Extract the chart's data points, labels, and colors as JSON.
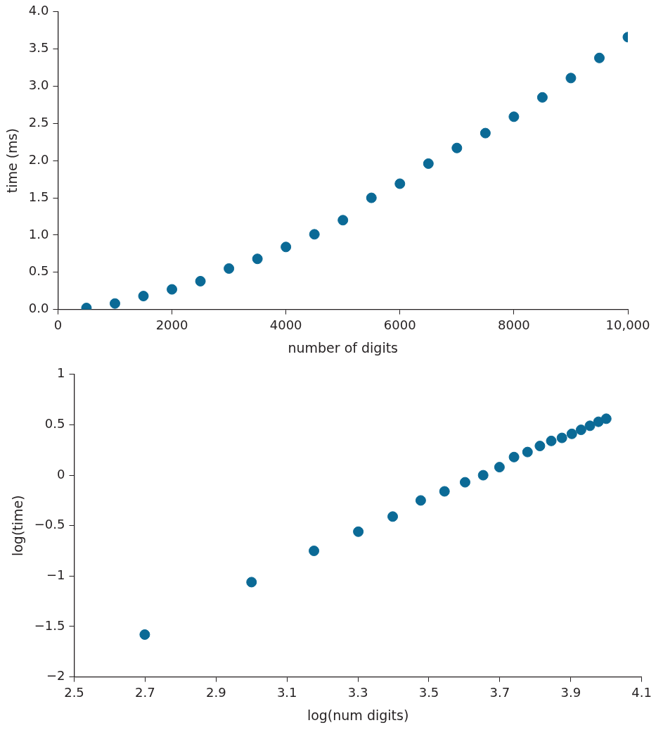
{
  "chart_data": [
    {
      "type": "scatter",
      "xlabel": "number of digits",
      "ylabel": "time (ms)",
      "color": "#0b6a96",
      "marker": "circle",
      "grid": false,
      "x": [
        500,
        1000,
        1500,
        2000,
        2500,
        3000,
        3500,
        4000,
        4500,
        5000,
        5500,
        6000,
        6500,
        7000,
        7500,
        8000,
        8500,
        9000,
        9500,
        10000
      ],
      "values": [
        0.02,
        0.08,
        0.18,
        0.27,
        0.38,
        0.55,
        0.68,
        0.84,
        1.01,
        1.2,
        1.5,
        1.69,
        1.96,
        2.17,
        2.37,
        2.59,
        2.85,
        3.11,
        3.38,
        3.66
      ],
      "xlim": [
        0,
        10000
      ],
      "ylim": [
        0,
        4
      ],
      "xticks": [
        0,
        2000,
        4000,
        6000,
        8000,
        {
          "value": 10000,
          "label": "10,000"
        }
      ],
      "yticks": [
        {
          "value": 0,
          "label": "0.0"
        },
        {
          "value": 0.5,
          "label": "0.5"
        },
        {
          "value": 1,
          "label": "1.0"
        },
        {
          "value": 1.5,
          "label": "1.5"
        },
        {
          "value": 2,
          "label": "2.0"
        },
        {
          "value": 2.5,
          "label": "2.5"
        },
        {
          "value": 3,
          "label": "3.0"
        },
        {
          "value": 3.5,
          "label": "3.5"
        },
        {
          "value": 4,
          "label": "4.0"
        }
      ]
    },
    {
      "type": "scatter",
      "xlabel": "log(num digits)",
      "ylabel": "log(time)",
      "color": "#0b6a96",
      "marker": "circle",
      "grid": false,
      "x": [
        2.699,
        3,
        3.176,
        3.301,
        3.398,
        3.477,
        3.544,
        3.602,
        3.653,
        3.699,
        3.74,
        3.778,
        3.813,
        3.845,
        3.875,
        3.903,
        3.929,
        3.954,
        3.978,
        4
      ],
      "values": [
        -1.58,
        -1.06,
        -0.75,
        -0.56,
        -0.41,
        -0.25,
        -0.16,
        -0.07,
        0,
        0.08,
        0.18,
        0.23,
        0.29,
        0.34,
        0.37,
        0.41,
        0.45,
        0.49,
        0.53,
        0.56
      ],
      "xlim": [
        2.5,
        4.1
      ],
      "ylim": [
        -2,
        1
      ],
      "xticks": [
        2.5,
        2.7,
        2.9,
        3.1,
        3.3,
        3.5,
        3.7,
        3.9,
        4.1
      ],
      "yticks": [
        {
          "value": -2,
          "label": "−2"
        },
        {
          "value": -1.5,
          "label": "−1.5"
        },
        {
          "value": -1,
          "label": "−1"
        },
        {
          "value": -0.5,
          "label": "−0.5"
        },
        0,
        0.5,
        1
      ]
    }
  ]
}
